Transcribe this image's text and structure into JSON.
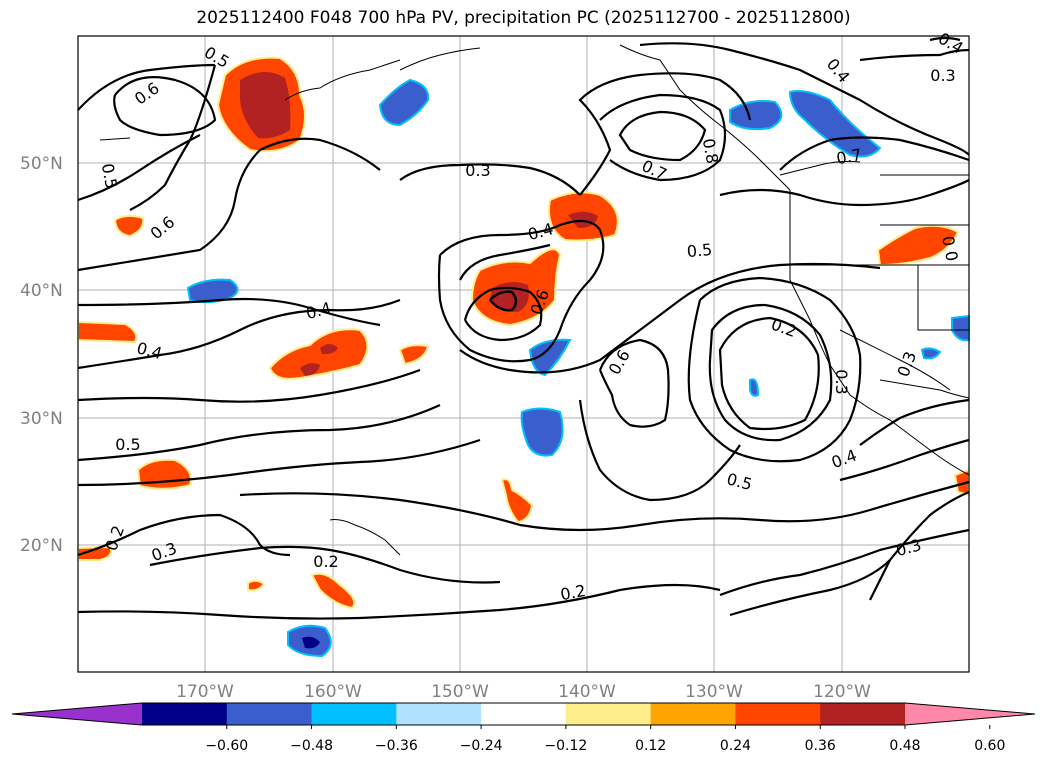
{
  "title": "2025112400 F048 700 hPa PV, precipitation PC (2025112700 - 2025112800)",
  "map": {
    "lat_labels": [
      "50°N",
      "40°N",
      "30°N",
      "20°N"
    ],
    "lon_labels": [
      "170°W",
      "160°W",
      "150°W",
      "140°W",
      "130°W",
      "120°W"
    ],
    "contour_labels": [
      {
        "id": "c05-nw",
        "text": "0.5"
      },
      {
        "id": "c06-nw",
        "text": "0.6"
      },
      {
        "id": "c05-w",
        "text": "0.5"
      },
      {
        "id": "c06-w",
        "text": "0.6"
      },
      {
        "id": "c03-n",
        "text": "0.3"
      },
      {
        "id": "c04-c",
        "text": "0.4"
      },
      {
        "id": "c06-c",
        "text": "0.6"
      },
      {
        "id": "c04-w",
        "text": "0.4"
      },
      {
        "id": "c04-sw",
        "text": "0.4"
      },
      {
        "id": "c05-sw",
        "text": "0.5"
      },
      {
        "id": "c02-sw",
        "text": "0.2"
      },
      {
        "id": "c03-s",
        "text": "0.3"
      },
      {
        "id": "c02-s",
        "text": "0.2"
      },
      {
        "id": "c02-s2",
        "text": "0.2"
      },
      {
        "id": "c05-c",
        "text": "0.5"
      },
      {
        "id": "c07-ne",
        "text": "0.7"
      },
      {
        "id": "c08-ne",
        "text": "0.8"
      },
      {
        "id": "c04-ne",
        "text": "0.4"
      },
      {
        "id": "c03-ne",
        "text": "0.3"
      },
      {
        "id": "c07-e",
        "text": "0.7"
      },
      {
        "id": "c04-ne2",
        "text": "0.4"
      },
      {
        "id": "c06-e",
        "text": "0.6"
      },
      {
        "id": "c02-e",
        "text": "0.2"
      },
      {
        "id": "c03-e",
        "text": "0.3"
      },
      {
        "id": "c03-e2",
        "text": "0.3"
      },
      {
        "id": "c05-se",
        "text": "0.5"
      },
      {
        "id": "c04-se",
        "text": "0.4"
      },
      {
        "id": "c03-se",
        "text": "0.3"
      },
      {
        "id": "c00-e",
        "text": "0"
      },
      {
        "id": "c0-ne",
        "text": "0"
      }
    ]
  },
  "colorbar": {
    "ticks": [
      "−0.60",
      "−0.48",
      "−0.36",
      "−0.24",
      "−0.12",
      "0.12",
      "0.24",
      "0.36",
      "0.48",
      "0.60"
    ],
    "colors": [
      "#9932cc",
      "#00008b",
      "#3a5fcd",
      "#00bfff",
      "#b0e2ff",
      "#ffffff",
      "#ffec8b",
      "#ffa500",
      "#ff4500",
      "#b22222",
      "#ff88aa"
    ]
  }
}
